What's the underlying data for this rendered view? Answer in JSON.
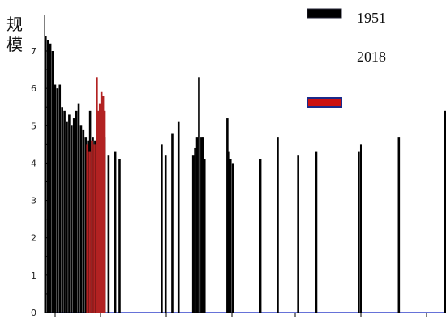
{
  "chart_data": {
    "type": "bar",
    "ylabel": "规模",
    "ylim": [
      0,
      7.5
    ],
    "yticks": [
      "0",
      "1",
      "2",
      "3",
      "4",
      "5",
      "6",
      "7"
    ],
    "legend": {
      "position": "top-right",
      "items": [
        "1951",
        "2018"
      ]
    },
    "series": [
      {
        "name": "1951",
        "color": "#000000",
        "points": [
          [
            0.0,
            7.4
          ],
          [
            0.006,
            7.3
          ],
          [
            0.012,
            7.2
          ],
          [
            0.018,
            7.0
          ],
          [
            0.024,
            6.1
          ],
          [
            0.03,
            6.0
          ],
          [
            0.036,
            6.1
          ],
          [
            0.042,
            5.5
          ],
          [
            0.048,
            5.4
          ],
          [
            0.054,
            5.1
          ],
          [
            0.06,
            5.3
          ],
          [
            0.066,
            5.0
          ],
          [
            0.072,
            5.2
          ],
          [
            0.078,
            5.4
          ],
          [
            0.084,
            5.6
          ],
          [
            0.09,
            5.0
          ],
          [
            0.096,
            4.9
          ],
          [
            0.102,
            4.7
          ],
          [
            0.108,
            4.6
          ],
          [
            0.113,
            5.4
          ],
          [
            0.12,
            4.7
          ],
          [
            0.126,
            4.6
          ],
          [
            0.15,
            4.7
          ],
          [
            0.16,
            4.2
          ],
          [
            0.177,
            4.3
          ],
          [
            0.188,
            4.1
          ],
          [
            0.295,
            4.5
          ],
          [
            0.305,
            4.2
          ],
          [
            0.322,
            4.8
          ],
          [
            0.338,
            5.1
          ],
          [
            0.375,
            4.2
          ],
          [
            0.38,
            4.4
          ],
          [
            0.385,
            4.7
          ],
          [
            0.39,
            6.3
          ],
          [
            0.396,
            4.7
          ],
          [
            0.4,
            4.7
          ],
          [
            0.404,
            4.1
          ],
          [
            0.462,
            5.2
          ],
          [
            0.466,
            4.3
          ],
          [
            0.47,
            4.1
          ],
          [
            0.476,
            4.0
          ],
          [
            0.546,
            4.1
          ],
          [
            0.59,
            4.7
          ],
          [
            0.642,
            4.2
          ],
          [
            0.688,
            4.3
          ],
          [
            0.796,
            4.3
          ],
          [
            0.802,
            4.5
          ],
          [
            0.898,
            4.7
          ],
          [
            1.022,
            5.4
          ]
        ]
      },
      {
        "name": "2018",
        "color": "#b22222",
        "points": [
          [
            0.106,
            4.5
          ],
          [
            0.112,
            4.3
          ],
          [
            0.118,
            4.6
          ],
          [
            0.124,
            4.5
          ],
          [
            0.13,
            6.3
          ],
          [
            0.134,
            5.4
          ],
          [
            0.138,
            5.6
          ],
          [
            0.142,
            5.9
          ],
          [
            0.146,
            5.8
          ],
          [
            0.15,
            5.4
          ]
        ]
      }
    ],
    "grid": false
  }
}
